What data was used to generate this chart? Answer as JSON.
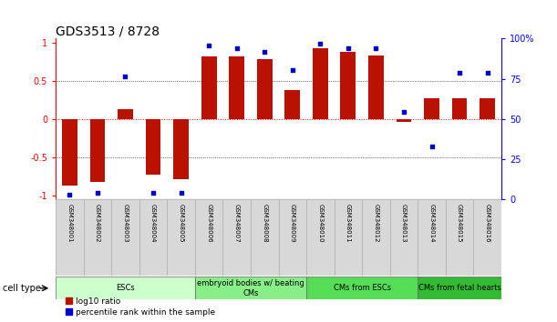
{
  "title": "GDS3513 / 8728",
  "samples": [
    "GSM348001",
    "GSM348002",
    "GSM348003",
    "GSM348004",
    "GSM348005",
    "GSM348006",
    "GSM348007",
    "GSM348008",
    "GSM348009",
    "GSM348010",
    "GSM348011",
    "GSM348012",
    "GSM348013",
    "GSM348014",
    "GSM348015",
    "GSM348016"
  ],
  "log10_ratio": [
    -0.87,
    -0.82,
    0.13,
    -0.72,
    -0.78,
    0.82,
    0.82,
    0.78,
    0.38,
    0.93,
    0.88,
    0.83,
    -0.03,
    0.27,
    0.27,
    0.27
  ],
  "percentile_rank": [
    1,
    2,
    78,
    2,
    2,
    98,
    96,
    94,
    82,
    99,
    96,
    96,
    55,
    32,
    80,
    80
  ],
  "bar_color": "#bb1100",
  "dot_color": "#0000cc",
  "bg_color": "#ffffff",
  "left_yticks": [
    -1,
    -0.5,
    0,
    0.5,
    1
  ],
  "left_ylabels": [
    "-1",
    "-0.5",
    "0",
    "0.5",
    "1"
  ],
  "right_yticks": [
    0,
    25,
    50,
    75,
    100
  ],
  "right_ylabels": [
    "0",
    "25",
    "50",
    "75",
    "100%"
  ],
  "ylim": [
    -1.05,
    1.05
  ],
  "cell_type_groups": [
    {
      "label": "ESCs",
      "start": 0,
      "end": 4,
      "color": "#ccffcc"
    },
    {
      "label": "embryoid bodies w/ beating\nCMs",
      "start": 5,
      "end": 8,
      "color": "#88ee88"
    },
    {
      "label": "CMs from ESCs",
      "start": 9,
      "end": 12,
      "color": "#55dd55"
    },
    {
      "label": "CMs from fetal hearts",
      "start": 13,
      "end": 15,
      "color": "#33bb33"
    }
  ],
  "legend_red_label": "log10 ratio",
  "legend_blue_label": "percentile rank within the sample",
  "cell_type_label": "cell type",
  "title_fontsize": 10,
  "tick_fontsize": 7,
  "bar_width": 0.55
}
